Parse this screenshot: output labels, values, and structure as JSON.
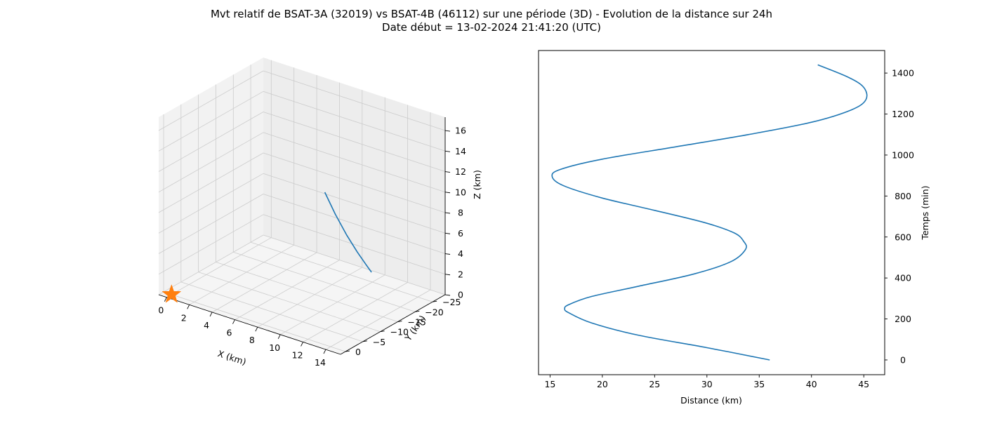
{
  "title_line1": "Mvt relatif de BSAT-3A (32019) vs BSAT-4B (46112) sur une période (3D) - Evolution de la distance sur 24h",
  "title_line2": "Date début = 13-02-2024 21:41:20 (UTC)",
  "colors": {
    "series": "#1f77b4",
    "marker": "#ff7f0e",
    "pane": "#f2f2f2",
    "grid": "#cccccc"
  },
  "chart_data": [
    {
      "type": "line3d",
      "xlabel": "X (km)",
      "ylabel": "Y (km)",
      "zlabel": "Z (km)",
      "xlim": [
        -0.7,
        15.3
      ],
      "ylim": [
        -28.6,
        1.4
      ],
      "zlim": [
        0,
        17.3
      ],
      "x_ticks": [
        0,
        2,
        4,
        6,
        8,
        10,
        12,
        14
      ],
      "y_ticks": [
        0,
        -5,
        -10,
        -15,
        -20,
        -25
      ],
      "z_ticks": [
        0,
        2,
        4,
        6,
        8,
        10,
        12,
        14,
        16
      ],
      "grid": true,
      "reference_marker": {
        "shape": "star",
        "x": 0,
        "y": 0,
        "z": 0
      },
      "series": [
        {
          "points": [
            [
              9.5,
              -13.0,
              10.9
            ],
            [
              9.8,
              -15.0,
              8.5
            ],
            [
              10.2,
              -17.0,
              6.2
            ],
            [
              10.5,
              -19.0,
              4.3
            ],
            [
              10.8,
              -20.5,
              2.9
            ],
            [
              11.0,
              -21.5,
              2.0
            ]
          ]
        }
      ]
    },
    {
      "type": "line",
      "xlabel": "Distance (km)",
      "ylabel": "Temps (min)",
      "xlim": [
        13.9,
        47.0
      ],
      "ylim": [
        -72,
        1510
      ],
      "x_ticks": [
        15,
        20,
        25,
        30,
        35,
        40,
        45
      ],
      "y_ticks": [
        0,
        200,
        400,
        600,
        800,
        1000,
        1200,
        1400
      ],
      "grid": false,
      "series": [
        {
          "points": [
            [
              36.0,
              0
            ],
            [
              30.0,
              60
            ],
            [
              23.5,
              120
            ],
            [
              19.0,
              180
            ],
            [
              16.8,
              230
            ],
            [
              16.4,
              250
            ],
            [
              16.8,
              270
            ],
            [
              19.0,
              310
            ],
            [
              23.5,
              360
            ],
            [
              28.8,
              420
            ],
            [
              32.3,
              480
            ],
            [
              33.7,
              540
            ],
            [
              33.5,
              580
            ],
            [
              32.6,
              620
            ],
            [
              29.8,
              670
            ],
            [
              25.0,
              730
            ],
            [
              20.0,
              790
            ],
            [
              16.3,
              850
            ],
            [
              15.2,
              895
            ],
            [
              16.0,
              930
            ],
            [
              20.0,
              980
            ],
            [
              27.0,
              1040
            ],
            [
              34.0,
              1100
            ],
            [
              40.0,
              1160
            ],
            [
              43.8,
              1220
            ],
            [
              45.2,
              1270
            ],
            [
              45.0,
              1330
            ],
            [
              43.5,
              1380
            ],
            [
              40.6,
              1440
            ]
          ]
        }
      ]
    }
  ]
}
